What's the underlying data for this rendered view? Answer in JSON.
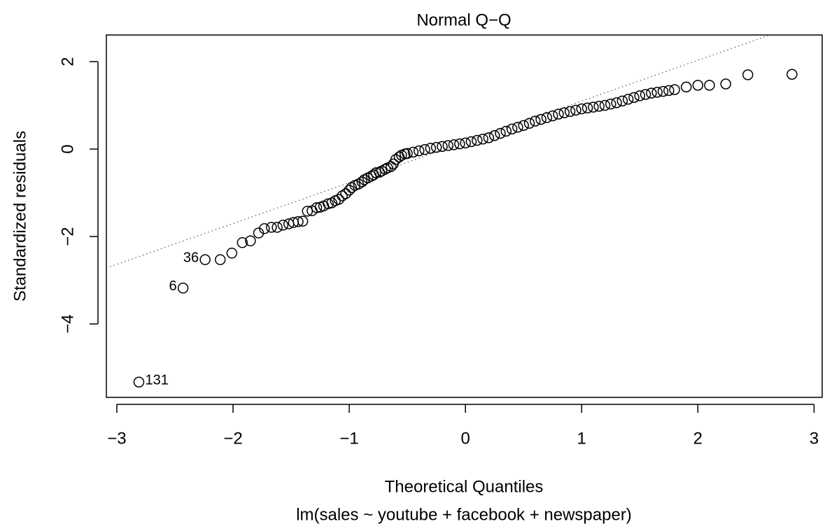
{
  "chart_data": {
    "type": "scatter",
    "title": "Normal Q−Q",
    "xlabel": "Theoretical Quantiles",
    "subtitle": "lm(sales ~ youtube + facebook + newspaper)",
    "ylabel": "Standardized residuals",
    "color": "#000000",
    "xlim": [
      -3.09,
      3.07
    ],
    "ylim": [
      -5.68,
      2.61
    ],
    "xticks": [
      {
        "value": -3,
        "label": "−3"
      },
      {
        "value": -2,
        "label": "−2"
      },
      {
        "value": -1,
        "label": "−1"
      },
      0,
      1,
      2,
      3
    ],
    "yticks": [
      {
        "value": -4,
        "label": "−4"
      },
      {
        "value": -2,
        "label": "−2"
      },
      0,
      2
    ],
    "reference_line": {
      "x": [
        -3.09,
        2.62
      ],
      "y": [
        -2.72,
        2.61
      ]
    },
    "x": [
      -2.81,
      -2.43,
      -2.24,
      -2.11,
      -2.01,
      -1.92,
      -1.85,
      -1.78,
      -1.73,
      -1.67,
      -1.62,
      -1.57,
      -1.52,
      -1.48,
      -1.44,
      -1.4,
      -1.36,
      -1.32,
      -1.28,
      -1.25,
      -1.22,
      -1.18,
      -1.15,
      -1.12,
      -1.09,
      -1.06,
      -1.03,
      -1.0,
      -0.98,
      -0.95,
      -0.92,
      -0.89,
      -0.87,
      -0.84,
      -0.81,
      -0.79,
      -0.77,
      -0.74,
      -0.72,
      -0.69,
      -0.67,
      -0.64,
      -0.62,
      -0.6,
      -0.57,
      -0.55,
      -0.52,
      -0.5,
      -0.45,
      -0.4,
      -0.35,
      -0.3,
      -0.25,
      -0.2,
      -0.15,
      -0.1,
      -0.05,
      0,
      0.05,
      0.1,
      0.15,
      0.2,
      0.25,
      0.3,
      0.35,
      0.4,
      0.45,
      0.5,
      0.55,
      0.6,
      0.65,
      0.7,
      0.75,
      0.8,
      0.85,
      0.9,
      0.95,
      1.0,
      1.05,
      1.1,
      1.15,
      1.2,
      1.25,
      1.3,
      1.35,
      1.4,
      1.45,
      1.5,
      1.55,
      1.6,
      1.65,
      1.7,
      1.75,
      1.8,
      1.9,
      2.0,
      2.1,
      2.24,
      2.43,
      2.81
    ],
    "values": [
      -5.33,
      -3.18,
      -2.53,
      -2.53,
      -2.38,
      -2.14,
      -2.1,
      -1.92,
      -1.82,
      -1.79,
      -1.79,
      -1.74,
      -1.71,
      -1.68,
      -1.66,
      -1.65,
      -1.42,
      -1.41,
      -1.34,
      -1.33,
      -1.3,
      -1.25,
      -1.23,
      -1.18,
      -1.15,
      -1.07,
      -1.02,
      -0.94,
      -0.88,
      -0.83,
      -0.8,
      -0.75,
      -0.7,
      -0.66,
      -0.62,
      -0.59,
      -0.54,
      -0.53,
      -0.5,
      -0.46,
      -0.43,
      -0.4,
      -0.34,
      -0.24,
      -0.18,
      -0.14,
      -0.11,
      -0.1,
      -0.07,
      -0.04,
      -0.01,
      0.02,
      0.04,
      0.06,
      0.08,
      0.1,
      0.12,
      0.14,
      0.17,
      0.2,
      0.23,
      0.26,
      0.31,
      0.36,
      0.41,
      0.46,
      0.5,
      0.54,
      0.59,
      0.64,
      0.68,
      0.72,
      0.76,
      0.8,
      0.83,
      0.86,
      0.89,
      0.92,
      0.94,
      0.96,
      0.98,
      1.0,
      1.03,
      1.06,
      1.1,
      1.14,
      1.18,
      1.22,
      1.25,
      1.28,
      1.3,
      1.32,
      1.34,
      1.36,
      1.42,
      1.46,
      1.46,
      1.49,
      1.7,
      1.71
    ],
    "point_labels": [
      "131",
      "6",
      "36",
      null,
      null,
      null,
      null,
      null,
      null,
      null,
      null,
      null,
      null,
      null,
      null,
      null,
      null,
      null,
      null,
      null,
      null,
      null,
      null,
      null,
      null,
      null,
      null,
      null,
      null,
      null,
      null,
      null,
      null,
      null,
      null,
      null,
      null,
      null,
      null,
      null,
      null,
      null,
      null,
      null,
      null,
      null,
      null,
      null,
      null,
      null,
      null,
      null,
      null,
      null,
      null,
      null,
      null,
      null,
      null,
      null,
      null,
      null,
      null,
      null,
      null,
      null,
      null,
      null,
      null,
      null,
      null,
      null,
      null,
      null,
      null,
      null,
      null,
      null,
      null,
      null,
      null,
      null,
      null,
      null,
      null,
      null,
      null,
      null,
      null,
      null,
      null,
      null,
      null,
      null,
      null,
      null,
      null,
      null,
      null,
      null
    ]
  }
}
